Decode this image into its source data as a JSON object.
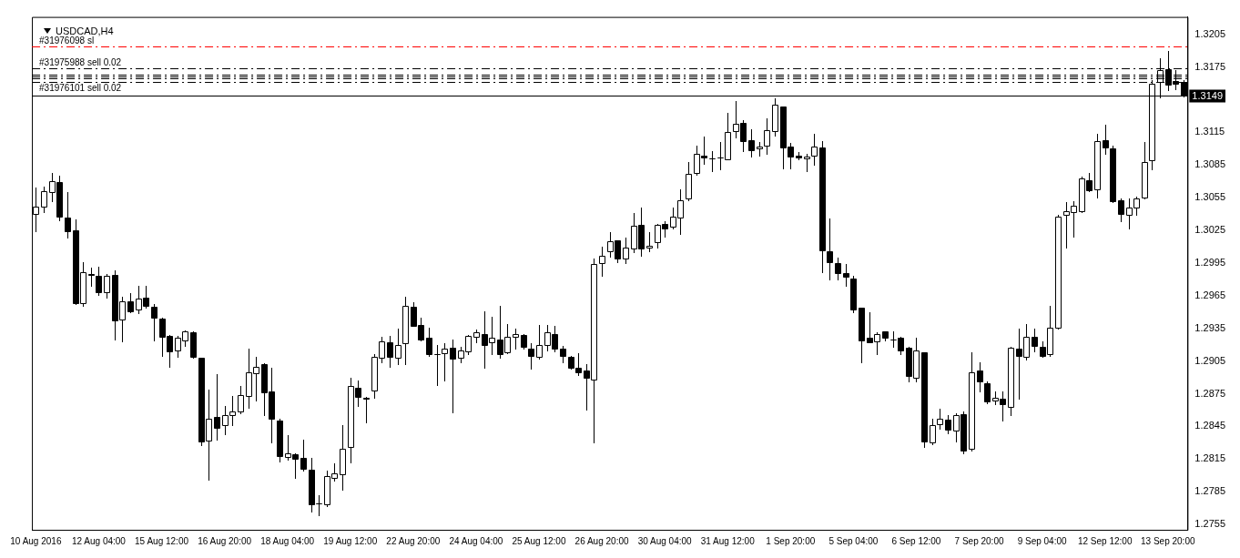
{
  "chart_data": {
    "type": "candlestick",
    "title": "USDCAD,H4",
    "categories": [
      "10 Aug 2016",
      null,
      null,
      null,
      null,
      null,
      null,
      null,
      "12 Aug 04:00",
      null,
      null,
      null,
      null,
      null,
      null,
      null,
      "15 Aug 12:00",
      null,
      null,
      null,
      null,
      null,
      null,
      null,
      "16 Aug 20:00",
      null,
      null,
      null,
      null,
      null,
      null,
      null,
      "18 Aug 04:00",
      null,
      null,
      null,
      null,
      null,
      null,
      null,
      "19 Aug 12:00",
      null,
      null,
      null,
      null,
      null,
      null,
      null,
      "22 Aug 20:00",
      null,
      null,
      null,
      null,
      null,
      null,
      null,
      "24 Aug 04:00",
      null,
      null,
      null,
      null,
      null,
      null,
      null,
      "25 Aug 12:00",
      null,
      null,
      null,
      null,
      null,
      null,
      null,
      "26 Aug 20:00",
      null,
      null,
      null,
      null,
      null,
      null,
      null,
      "30 Aug 04:00",
      null,
      null,
      null,
      null,
      null,
      null,
      null,
      "31 Aug 12:00",
      null,
      null,
      null,
      null,
      null,
      null,
      null,
      "1 Sep 20:00",
      null,
      null,
      null,
      null,
      null,
      null,
      null,
      "5 Sep 04:00",
      null,
      null,
      null,
      null,
      null,
      null,
      null,
      "6 Sep 12:00",
      null,
      null,
      null,
      null,
      null,
      null,
      null,
      "7 Sep 20:00",
      null,
      null,
      null,
      null,
      null,
      null,
      null,
      "9 Sep 04:00",
      null,
      null,
      null,
      null,
      null,
      null,
      null,
      "12 Sep 12:00",
      null,
      null,
      null,
      null,
      null,
      null,
      null,
      "13 Sep 20:00",
      null,
      null
    ],
    "ohlc": [
      [
        1.304,
        1.3064,
        1.3024,
        1.3047
      ],
      [
        1.3047,
        1.3065,
        1.3042,
        1.3061
      ],
      [
        1.306,
        1.3078,
        1.3052,
        1.307
      ],
      [
        1.3069,
        1.3075,
        1.3034,
        1.3038
      ],
      [
        1.3037,
        1.306,
        1.3018,
        1.3024
      ],
      [
        1.3025,
        1.3035,
        1.2957,
        1.2958
      ],
      [
        1.2958,
        1.2996,
        1.2956,
        1.2987
      ],
      [
        1.2985,
        1.2991,
        1.2974,
        1.2984
      ],
      [
        1.2983,
        1.2992,
        1.2966,
        1.2968
      ],
      [
        1.2968,
        1.2985,
        1.2963,
        1.2983
      ],
      [
        1.2984,
        1.2988,
        1.2925,
        1.2942
      ],
      [
        1.2943,
        1.2964,
        1.2923,
        1.296
      ],
      [
        1.296,
        1.2967,
        1.295,
        1.2951
      ],
      [
        1.2952,
        1.2974,
        1.2949,
        1.2962
      ],
      [
        1.2963,
        1.2974,
        1.2954,
        1.2956
      ],
      [
        1.2955,
        1.2957,
        1.2924,
        1.2945
      ],
      [
        1.2944,
        1.2945,
        1.291,
        1.2927
      ],
      [
        1.2928,
        1.2929,
        1.29,
        1.2914
      ],
      [
        1.2915,
        1.2928,
        1.2909,
        1.2926
      ],
      [
        1.2924,
        1.2933,
        1.2919,
        1.2932
      ],
      [
        1.2931,
        1.2932,
        1.2908,
        1.2909
      ],
      [
        1.2908,
        1.2908,
        1.2828,
        1.2831
      ],
      [
        1.2832,
        1.2879,
        1.2796,
        1.2852
      ],
      [
        1.2854,
        1.2893,
        1.2833,
        1.2844
      ],
      [
        1.2846,
        1.2864,
        1.2838,
        1.2855
      ],
      [
        1.2855,
        1.2873,
        1.2846,
        1.2859
      ],
      [
        1.2859,
        1.2882,
        1.2857,
        1.2874
      ],
      [
        1.2873,
        1.2916,
        1.2862,
        1.2895
      ],
      [
        1.2894,
        1.2909,
        1.2869,
        1.29
      ],
      [
        1.2902,
        1.2903,
        1.2855,
        1.2876
      ],
      [
        1.2877,
        1.2899,
        1.283,
        1.2852
      ],
      [
        1.285,
        1.2852,
        1.2813,
        1.2818
      ],
      [
        1.2817,
        1.2837,
        1.2814,
        1.282
      ],
      [
        1.2819,
        1.282,
        1.2798,
        1.2815
      ],
      [
        1.2816,
        1.2833,
        1.2804,
        1.2806
      ],
      [
        1.2805,
        1.2816,
        1.2767,
        1.2773
      ],
      [
        1.2774,
        1.2782,
        1.2763,
        1.2774
      ],
      [
        1.2773,
        1.2804,
        1.2772,
        1.2799
      ],
      [
        1.2798,
        1.2811,
        1.2795,
        1.2802
      ],
      [
        1.2801,
        1.2846,
        1.2787,
        1.2824
      ],
      [
        1.2826,
        1.289,
        1.2812,
        1.2882
      ],
      [
        1.288,
        1.2887,
        1.2864,
        1.2872
      ],
      [
        1.2871,
        1.2872,
        1.2849,
        1.287
      ],
      [
        1.2878,
        1.2911,
        1.2871,
        1.2909
      ],
      [
        1.2908,
        1.2927,
        1.2904,
        1.2923
      ],
      [
        1.2922,
        1.2928,
        1.29,
        1.2909
      ],
      [
        1.2908,
        1.2935,
        1.2902,
        1.292
      ],
      [
        1.2921,
        1.2964,
        1.2902,
        1.2956
      ],
      [
        1.2955,
        1.2959,
        1.2937,
        1.2937
      ],
      [
        1.2938,
        1.2945,
        1.2924,
        1.2925
      ],
      [
        1.2926,
        1.2936,
        1.291,
        1.2911
      ],
      [
        1.2911,
        1.292,
        1.2883,
        1.2911
      ],
      [
        1.2912,
        1.2921,
        1.2887,
        1.2916
      ],
      [
        1.2917,
        1.2925,
        1.2858,
        1.2907
      ],
      [
        1.2908,
        1.2918,
        1.2904,
        1.2915
      ],
      [
        1.2914,
        1.2929,
        1.2911,
        1.2928
      ],
      [
        1.2927,
        1.2934,
        1.2922,
        1.2931
      ],
      [
        1.293,
        1.2951,
        1.2899,
        1.292
      ],
      [
        1.2922,
        1.2946,
        1.2911,
        1.2926
      ],
      [
        1.2925,
        1.2956,
        1.2908,
        1.2911
      ],
      [
        1.2913,
        1.2939,
        1.2912,
        1.2927
      ],
      [
        1.2927,
        1.2935,
        1.2916,
        1.293
      ],
      [
        1.2929,
        1.293,
        1.2916,
        1.2918
      ],
      [
        1.2916,
        1.2921,
        1.2898,
        1.291
      ],
      [
        1.2909,
        1.2938,
        1.2907,
        1.292
      ],
      [
        1.292,
        1.2938,
        1.2915,
        1.2931
      ],
      [
        1.293,
        1.2937,
        1.2914,
        1.2916
      ],
      [
        1.2916,
        1.2919,
        1.2904,
        1.291
      ],
      [
        1.2909,
        1.291,
        1.2898,
        1.2899
      ],
      [
        1.2899,
        1.2912,
        1.2892,
        1.2895
      ],
      [
        1.2896,
        1.2902,
        1.286,
        1.289
      ],
      [
        1.2888,
        1.2999,
        1.283,
        1.2994
      ],
      [
        1.2995,
        1.301,
        1.2983,
        1.3002
      ],
      [
        1.3006,
        1.3023,
        1.3001,
        1.3015
      ],
      [
        1.3016,
        1.3016,
        1.2996,
        1.2999
      ],
      [
        1.2999,
        1.3018,
        1.2995,
        1.3009
      ],
      [
        1.3008,
        1.3041,
        1.3005,
        1.3029
      ],
      [
        1.303,
        1.3046,
        1.3002,
        1.3008
      ],
      [
        1.3009,
        1.3023,
        1.3006,
        1.3011
      ],
      [
        1.3014,
        1.3031,
        1.3009,
        1.303
      ],
      [
        1.3031,
        1.3033,
        1.3019,
        1.3027
      ],
      [
        1.3028,
        1.3046,
        1.3027,
        1.3038
      ],
      [
        1.3037,
        1.3063,
        1.3022,
        1.3053
      ],
      [
        1.3054,
        1.3088,
        1.3053,
        1.3077
      ],
      [
        1.3078,
        1.3103,
        1.3076,
        1.3095
      ],
      [
        1.3094,
        1.3111,
        1.3086,
        1.3092
      ],
      [
        1.3091,
        1.3098,
        1.3079,
        1.3091
      ],
      [
        1.3092,
        1.3106,
        1.3081,
        1.3092
      ],
      [
        1.309,
        1.3133,
        1.309,
        1.3115
      ],
      [
        1.3116,
        1.3144,
        1.311,
        1.3123
      ],
      [
        1.3124,
        1.3126,
        1.3098,
        1.3107
      ],
      [
        1.3108,
        1.3118,
        1.3093,
        1.3099
      ],
      [
        1.31,
        1.3106,
        1.3094,
        1.3102
      ],
      [
        1.3103,
        1.3128,
        1.3095,
        1.3117
      ],
      [
        1.3116,
        1.3146,
        1.3112,
        1.314
      ],
      [
        1.3139,
        1.3139,
        1.3082,
        1.3101
      ],
      [
        1.3102,
        1.3105,
        1.3082,
        1.3093
      ],
      [
        1.3094,
        1.3097,
        1.309,
        1.3092
      ],
      [
        1.3091,
        1.3095,
        1.3079,
        1.3093
      ],
      [
        1.3094,
        1.3114,
        1.3085,
        1.3102
      ],
      [
        1.3101,
        1.3107,
        1.2987,
        1.3007
      ],
      [
        1.3006,
        1.3036,
        1.298,
        1.2996
      ],
      [
        1.2995,
        1.3,
        1.298,
        1.2986
      ],
      [
        1.2986,
        1.2994,
        1.2974,
        1.2982
      ],
      [
        1.2981,
        1.2983,
        1.295,
        1.2952
      ],
      [
        1.2954,
        1.2954,
        1.2904,
        1.2924
      ],
      [
        1.2926,
        1.295,
        1.2922,
        1.2922
      ],
      [
        1.2923,
        1.2931,
        1.2911,
        1.293
      ],
      [
        1.2932,
        1.2932,
        1.2924,
        1.2926
      ],
      [
        1.2925,
        1.2932,
        1.2918,
        1.2925
      ],
      [
        1.2926,
        1.2927,
        1.2911,
        1.2915
      ],
      [
        1.2917,
        1.2918,
        1.2886,
        1.2891
      ],
      [
        1.289,
        1.2926,
        1.2886,
        1.2915
      ],
      [
        1.2913,
        1.2913,
        1.2826,
        1.2831
      ],
      [
        1.283,
        1.2852,
        1.2829,
        1.2846
      ],
      [
        1.2847,
        1.2861,
        1.2843,
        1.2852
      ],
      [
        1.2851,
        1.2855,
        1.2839,
        1.2842
      ],
      [
        1.2841,
        1.2857,
        1.2831,
        1.2855
      ],
      [
        1.2856,
        1.2859,
        1.282,
        1.2823
      ],
      [
        1.2824,
        1.2913,
        1.2823,
        1.2895
      ],
      [
        1.2896,
        1.2904,
        1.2877,
        1.2886
      ],
      [
        1.2885,
        1.2886,
        1.2866,
        1.2868
      ],
      [
        1.2869,
        1.2877,
        1.2865,
        1.2871
      ],
      [
        1.287,
        1.2877,
        1.285,
        1.2865
      ],
      [
        1.2863,
        1.2918,
        1.2855,
        1.2917
      ],
      [
        1.2916,
        1.2935,
        1.287,
        1.291
      ],
      [
        1.2909,
        1.2939,
        1.2906,
        1.2927
      ],
      [
        1.2927,
        1.2935,
        1.2914,
        1.2919
      ],
      [
        1.2918,
        1.2923,
        1.2909,
        1.291
      ],
      [
        1.2911,
        1.2956,
        1.291,
        1.2936
      ],
      [
        1.2936,
        1.3039,
        1.2935,
        1.3038
      ],
      [
        1.3039,
        1.3051,
        1.3009,
        1.3043
      ],
      [
        1.3042,
        1.3052,
        1.3019,
        1.3048
      ],
      [
        1.3043,
        1.3074,
        1.3042,
        1.3073
      ],
      [
        1.3071,
        1.3078,
        1.3061,
        1.3062
      ],
      [
        1.3063,
        1.3114,
        1.3055,
        1.3107
      ],
      [
        1.3108,
        1.3122,
        1.3095,
        1.3101
      ],
      [
        1.31,
        1.3103,
        1.3051,
        1.3052
      ],
      [
        1.3053,
        1.3054,
        1.3033,
        1.304
      ],
      [
        1.3039,
        1.3054,
        1.3027,
        1.3046
      ],
      [
        1.3046,
        1.3056,
        1.3039,
        1.3054
      ],
      [
        1.3055,
        1.3106,
        1.3054,
        1.3088
      ],
      [
        1.3089,
        1.3163,
        1.3081,
        1.316
      ],
      [
        1.3161,
        1.3183,
        1.3147,
        1.3172
      ],
      [
        1.3173,
        1.319,
        1.3154,
        1.3159
      ],
      [
        1.3162,
        1.3172,
        1.3155,
        1.316
      ],
      [
        1.3161,
        1.3163,
        1.3148,
        1.3149
      ]
    ],
    "ylim": [
      1.275,
      1.3221
    ],
    "yticks": [
      1.2755,
      1.2785,
      1.2815,
      1.2845,
      1.2875,
      1.2905,
      1.2935,
      1.2965,
      1.2995,
      1.3025,
      1.3055,
      1.3085,
      1.3115,
      1.3175,
      1.3205
    ],
    "ref_lines": [
      {
        "axis": "y",
        "value": 1.3194,
        "label": "#31976098 sl",
        "color": "#ff0000",
        "line_style": "dashed"
      },
      {
        "axis": "y",
        "value": 1.3174,
        "label": "#31975988 sell 0.02",
        "color": "#000000",
        "line_style": "dashed"
      },
      {
        "axis": "y",
        "value": 1.3168,
        "label": null,
        "color": "#000000",
        "line_style": "dashed"
      },
      {
        "axis": "y",
        "value": 1.3166,
        "label": null,
        "color": "#000000",
        "line_style": "dashed"
      },
      {
        "axis": "y",
        "value": 1.3165,
        "label": null,
        "color": "#000000",
        "line_style": "dashed"
      },
      {
        "axis": "y",
        "value": 1.3161,
        "label": "#31976101 sell 0.02",
        "color": "#000000",
        "line_style": "dashed"
      },
      {
        "axis": "y",
        "value": 1.3149,
        "label": "1.3149",
        "color": "#000000",
        "line_style": "solid"
      }
    ],
    "grid": false,
    "legend": false
  }
}
